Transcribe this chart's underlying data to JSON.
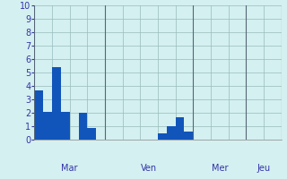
{
  "title": "",
  "background_color": "#d4f0f0",
  "bar_color": "#1155bb",
  "ylim": [
    0,
    10
  ],
  "yticks": [
    0,
    1,
    2,
    3,
    4,
    5,
    6,
    7,
    8,
    9,
    10
  ],
  "grid_color": "#99bbbb",
  "day_labels": [
    "Mar",
    "Ven",
    "Mer",
    "Jeu"
  ],
  "xlabel_fontsize": 8,
  "tick_fontsize": 7,
  "label_color": "#3333aa",
  "n_slots": 56,
  "bar_heights": [
    3.7,
    3.7,
    2.1,
    2.1,
    5.4,
    5.4,
    2.1,
    2.1,
    0.0,
    0.0,
    2.0,
    2.0,
    0.9,
    0.9,
    0.0,
    0.0,
    0.0,
    0.0,
    0.0,
    0.0,
    0.0,
    0.0,
    0.0,
    0.0,
    0.0,
    0.0,
    0.0,
    0.0,
    0.5,
    0.5,
    1.0,
    1.0,
    1.7,
    1.7,
    0.6,
    0.6,
    0.0,
    0.0,
    0.0,
    0.0,
    0.0,
    0.0,
    0.0,
    0.0,
    0.0,
    0.0,
    0.0,
    0.0,
    0.0,
    0.0,
    0.0,
    0.0,
    0.0,
    0.0,
    0.0,
    0.0
  ],
  "day_label_names": [
    "Mar",
    "Ven",
    "Mer",
    "Jeu"
  ],
  "vline_positions": [
    0,
    16,
    36,
    48,
    56
  ]
}
